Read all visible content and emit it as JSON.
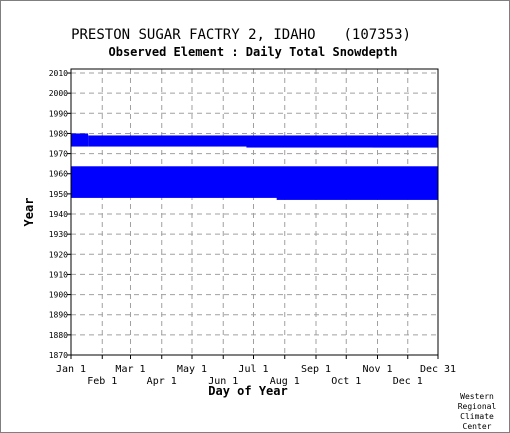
{
  "header": {
    "station_name": "PRESTON SUGAR FACTRY 2, IDAHO",
    "station_id": "(107353)",
    "subtitle": "Observed Element : Daily Total Snowdepth"
  },
  "credit": [
    "Western",
    "Regional",
    "Climate",
    "Center"
  ],
  "colors": {
    "data": "#0000ff",
    "grid": "#a0a0a0",
    "axis": "#000000",
    "text": "#000000"
  },
  "chart_data": {
    "type": "heatmap",
    "title": "PRESTON SUGAR FACTRY 2, IDAHO   (107353)",
    "subtitle": "Observed Element : Daily Total Snowdepth",
    "xlabel": "Day of Year",
    "ylabel": "Year",
    "xlim": [
      1,
      365
    ],
    "ylim": [
      1870,
      2012
    ],
    "x_ticks_upper": [
      {
        "label": "Jan 1",
        "day": 1
      },
      {
        "label": "Mar 1",
        "day": 60
      },
      {
        "label": "May 1",
        "day": 121
      },
      {
        "label": "Jul 1",
        "day": 182
      },
      {
        "label": "Sep 1",
        "day": 244
      },
      {
        "label": "Nov 1",
        "day": 305
      },
      {
        "label": "Dec 31",
        "day": 365
      }
    ],
    "x_ticks_lower": [
      {
        "label": "Feb 1",
        "day": 32
      },
      {
        "label": "Apr 1",
        "day": 91
      },
      {
        "label": "Jun 1",
        "day": 152
      },
      {
        "label": "Aug 1",
        "day": 213
      },
      {
        "label": "Oct 1",
        "day": 274
      },
      {
        "label": "Dec 1",
        "day": 335
      }
    ],
    "y_ticks": [
      1870,
      1880,
      1890,
      1900,
      1910,
      1920,
      1930,
      1940,
      1950,
      1960,
      1970,
      1980,
      1990,
      2000,
      2010
    ],
    "grid": true,
    "observed_periods": [
      {
        "start_year": 1973.5,
        "start_day": 1,
        "end_year": 1980.0,
        "end_day": 18
      },
      {
        "start_year": 1973.5,
        "start_day": 18,
        "end_year": 1979.0,
        "end_day": 365
      },
      {
        "start_year": 1973.0,
        "start_day": 175,
        "end_year": 1976.0,
        "end_day": 365
      },
      {
        "start_year": 1973.0,
        "start_day": 300,
        "end_year": 1975.0,
        "end_day": 365
      },
      {
        "start_year": 1948.0,
        "start_day": 1,
        "end_year": 1963.7,
        "end_day": 365
      },
      {
        "start_year": 1947.0,
        "start_day": 205,
        "end_year": 1948.5,
        "end_day": 365
      }
    ]
  }
}
